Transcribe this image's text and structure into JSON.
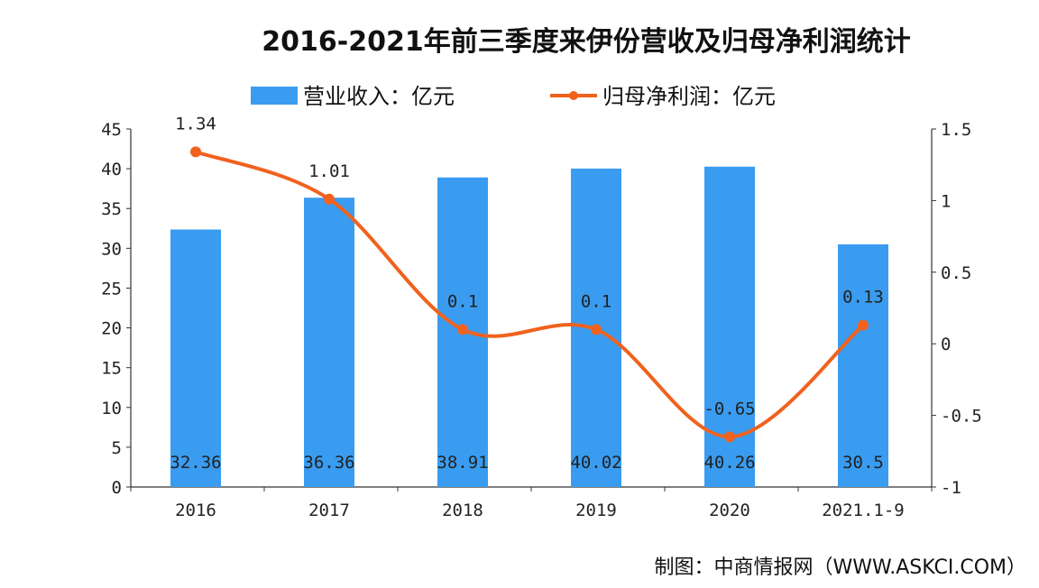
{
  "chart_data": {
    "type": "bar+line",
    "title": "2016-2021年前三季度来伊份营收及归母净利润统计",
    "categories": [
      "2016",
      "2017",
      "2018",
      "2019",
      "2020",
      "2021.1-9"
    ],
    "series": [
      {
        "name": "营业收入：亿元",
        "type": "bar",
        "axis": "left",
        "color": "#3a9cf0",
        "values": [
          32.36,
          36.36,
          38.91,
          40.02,
          40.26,
          30.5
        ],
        "labels": [
          "32.36",
          "36.36",
          "38.91",
          "40.02",
          "40.26",
          "30.5"
        ]
      },
      {
        "name": "归母净利润：亿元",
        "type": "line",
        "axis": "right",
        "color": "#f0621e",
        "smooth": true,
        "values": [
          1.34,
          1.01,
          0.1,
          0.1,
          -0.65,
          0.13
        ],
        "labels": [
          "1.34",
          "1.01",
          "0.1",
          "0.1",
          "-0.65",
          "0.13"
        ]
      }
    ],
    "y_left": {
      "lim": [
        0,
        45
      ],
      "ticks": [
        "0",
        "5",
        "10",
        "15",
        "20",
        "25",
        "30",
        "35",
        "40",
        "45"
      ]
    },
    "y_right": {
      "lim": [
        -1,
        1.5
      ],
      "ticks": [
        "-1",
        "-0.5",
        "0",
        "0.5",
        "1",
        "1.5"
      ]
    },
    "grid": false,
    "legend": "top"
  },
  "source": "制图：中商情报网（WWW.ASKCI.COM）"
}
